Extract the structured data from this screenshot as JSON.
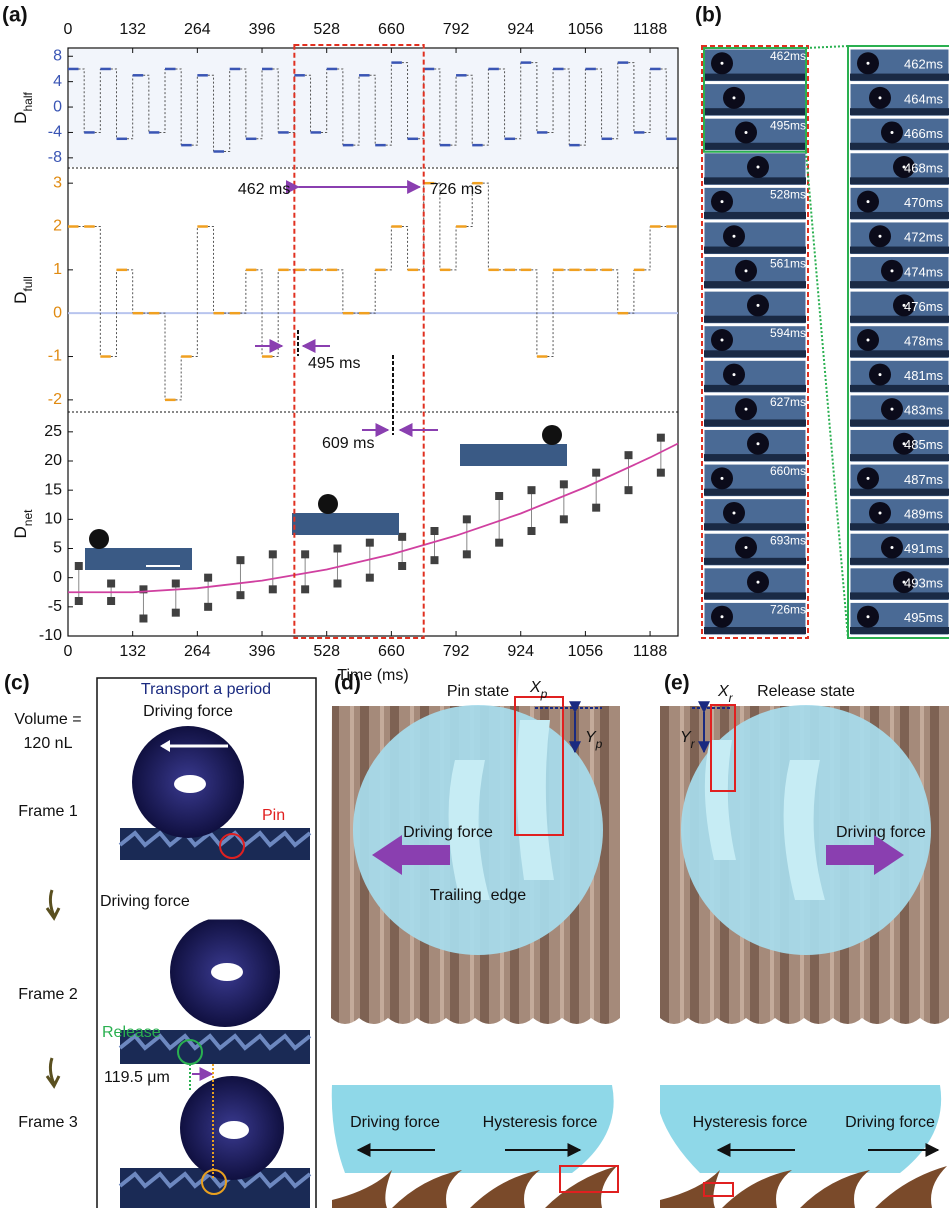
{
  "panel_labels": [
    "(a)",
    "(b)",
    "(c)",
    "(d)",
    "(e)"
  ],
  "chart_data": [
    {
      "type": "step",
      "ylabel": "D",
      "ylabel_sub": "half",
      "color": "#3a55b4",
      "x": [
        0,
        33,
        66,
        99,
        132,
        165,
        198,
        231,
        264,
        297,
        330,
        363,
        396,
        429,
        462,
        495,
        528,
        561,
        594,
        627,
        660,
        693,
        726,
        759,
        792,
        825,
        858,
        891,
        924,
        957,
        990,
        1023,
        1056,
        1089,
        1122,
        1155,
        1188,
        1221
      ],
      "values": [
        6,
        -4,
        6,
        -5,
        5,
        -4,
        6,
        -6,
        5,
        -7,
        6,
        -5,
        6,
        -4,
        5,
        -4,
        6,
        -6,
        5,
        -6,
        7,
        -5,
        6,
        -6,
        5,
        -6,
        6,
        -5,
        7,
        -4,
        6,
        -6,
        6,
        -5,
        7,
        -4,
        6,
        -5
      ],
      "xlim": [
        0,
        1245
      ],
      "xticks": [
        0,
        132,
        264,
        396,
        528,
        660,
        792,
        924,
        1056,
        1188
      ],
      "ylim": [
        -9.6,
        9.3
      ],
      "yticks": [
        8,
        4,
        0,
        -4,
        -8
      ]
    },
    {
      "type": "step",
      "ylabel": "D",
      "ylabel_sub": "full",
      "color": "#f0a020",
      "x": [
        0,
        33,
        66,
        99,
        132,
        165,
        198,
        231,
        264,
        297,
        330,
        363,
        396,
        429,
        462,
        495,
        528,
        561,
        594,
        627,
        660,
        693,
        726,
        759,
        792,
        825,
        858,
        891,
        924,
        957,
        990,
        1023,
        1056,
        1089,
        1122,
        1155,
        1188,
        1221
      ],
      "values": [
        2,
        2,
        -1,
        1,
        0,
        0,
        -2,
        -1,
        2,
        0,
        0,
        1,
        -1,
        1,
        1,
        1,
        1,
        0,
        0,
        1,
        2,
        1,
        3,
        1,
        2,
        3,
        1,
        1,
        1,
        -1,
        1,
        1,
        1,
        1,
        0,
        1,
        2,
        2
      ],
      "xlim": [
        0,
        1245
      ],
      "ylim": [
        -2.28,
        3.35
      ],
      "yticks": [
        3,
        2,
        1,
        0,
        -1,
        -2
      ],
      "zero_line": true,
      "annotations": [
        "462 ms",
        "726 ms",
        "495 ms"
      ]
    },
    {
      "type": "scatter",
      "ylabel": "D",
      "ylabel_sub": "net",
      "xlabel": "Time (ms)",
      "x": [
        22,
        88,
        154,
        220,
        286,
        352,
        418,
        484,
        550,
        616,
        682,
        748,
        814,
        880,
        946,
        1012,
        1078,
        1144,
        1210
      ],
      "series": [
        {
          "color": "#404040",
          "values": [
            2,
            -1,
            -2,
            -1,
            0,
            3,
            4,
            4,
            5,
            6,
            7,
            8,
            10,
            14,
            15,
            16,
            18,
            21,
            24
          ]
        },
        {
          "color": "#404040",
          "values": [
            -4,
            -4,
            -7,
            -6,
            -5,
            -3,
            -2,
            -2,
            -1,
            0,
            2,
            3,
            4,
            6,
            8,
            10,
            12,
            15,
            18
          ]
        },
        {
          "color": "#d040a0",
          "x": [
            0,
            132,
            264,
            396,
            528,
            660,
            792,
            924,
            1056,
            1188,
            1245
          ],
          "values": [
            -2.5,
            -2.5,
            -1.8,
            -0.5,
            1.4,
            4.0,
            7.2,
            11.0,
            15.5,
            20.6,
            23.0
          ]
        }
      ],
      "xlim": [
        0,
        1245
      ],
      "xticks": [
        0,
        132,
        264,
        396,
        528,
        660,
        792,
        924,
        1056,
        1188
      ],
      "ylim": [
        -10,
        28.4
      ],
      "yticks": [
        25,
        20,
        15,
        10,
        5,
        0,
        -5,
        -10
      ],
      "annotations": [
        "609 ms"
      ]
    }
  ],
  "panel_b": {
    "red_labels": [
      "462ms",
      "495ms",
      "528ms",
      "561ms",
      "594ms",
      "627ms",
      "660ms",
      "693ms",
      "726ms"
    ],
    "green_labels": [
      "462ms",
      "464ms",
      "466ms",
      "468ms",
      "470ms",
      "472ms",
      "474ms",
      "476ms",
      "478ms",
      "481ms",
      "483ms",
      "485ms",
      "487ms",
      "489ms",
      "491ms",
      "493ms",
      "495ms"
    ]
  },
  "panel_c": {
    "title": "Transport a period",
    "volume": "Volume =",
    "volume_value": "120 nL",
    "frames": [
      "Frame 1",
      "Frame 2",
      "Frame 3"
    ],
    "driving_force": [
      "Driving force",
      "Driving force"
    ],
    "pin": "Pin",
    "release": "Release",
    "displacement": "119.5 μm"
  },
  "panel_d": {
    "title": "Pin state",
    "driving_force": "Driving force",
    "trailing_edge": "Trailing  edge",
    "x_label": "X",
    "x_sub": "p",
    "y_label": "Y",
    "y_sub": "p",
    "bottom_driving": "Driving force",
    "bottom_hysteresis": "Hysteresis force"
  },
  "panel_e": {
    "title": "Release state",
    "driving_force": "Driving force",
    "x_label": "X",
    "x_sub": "r",
    "y_label": "Y",
    "y_sub": "r",
    "bottom_hysteresis": "Hysteresis force",
    "bottom_driving": "Driving force"
  }
}
